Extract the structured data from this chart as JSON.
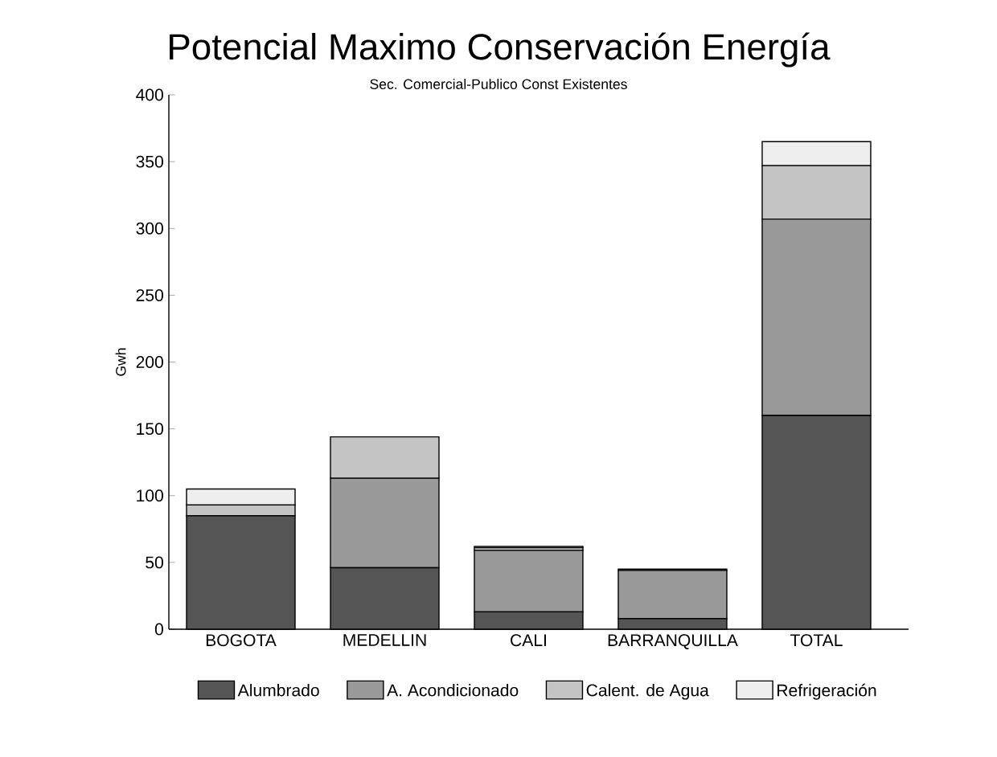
{
  "chart_data": {
    "type": "bar",
    "stacked": true,
    "title": "Potencial Maximo Conservación Energía",
    "subtitle": "Sec. Comercial-Publico Const Existentes",
    "ylabel": "Gwh",
    "categories": [
      "BOGOTA",
      "MEDELLIN",
      "CALI",
      "BARRANQUILLA",
      "TOTAL"
    ],
    "series": [
      {
        "name": "Alumbrado",
        "color": "#555555",
        "values": [
          85,
          46,
          13,
          8,
          160
        ]
      },
      {
        "name": "A. Acondicionado",
        "color": "#999999",
        "values": [
          0,
          67,
          46,
          36,
          147
        ]
      },
      {
        "name": "Calent. de Agua",
        "color": "#c4c4c4",
        "values": [
          8,
          31,
          2,
          1,
          40
        ]
      },
      {
        "name": "Refrigeración",
        "color": "#eeeeee",
        "values": [
          12,
          0,
          1,
          0,
          18
        ]
      }
    ],
    "ylim": [
      0,
      400
    ],
    "yticks": [
      0,
      50,
      100,
      150,
      200,
      250,
      300,
      350,
      400
    ],
    "grid": false,
    "legend": "bottom"
  }
}
